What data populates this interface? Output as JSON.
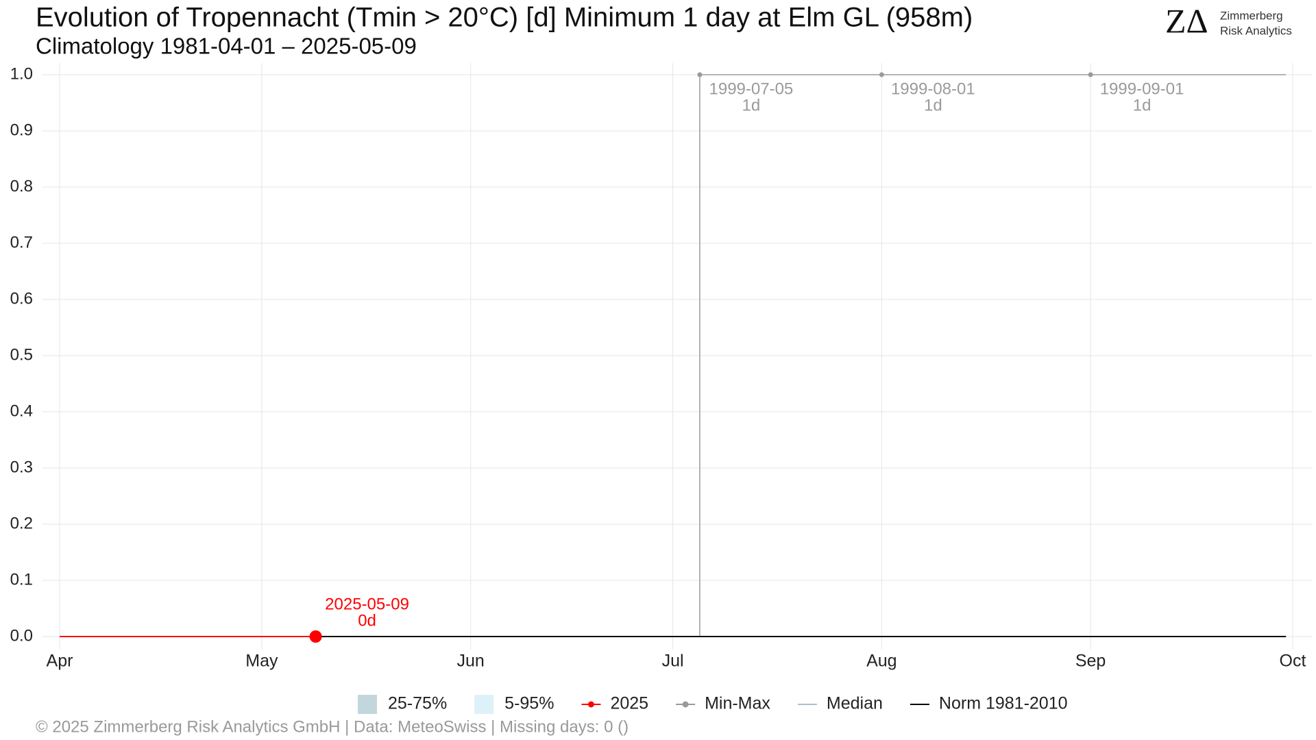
{
  "chart_data": {
    "type": "line",
    "title": "Evolution of Tropennacht (Tmin > 20°C) [d] Minimum 1 day at Elm  GL (958m)",
    "subtitle": "Climatology 1981-04-01 – 2025-05-09",
    "caption": "©  2025 Zimmerberg Risk Analytics GmbH | Data: MeteoSwiss | Missing days: 0 ()",
    "logo": {
      "mark": "ZΔ",
      "line1": "Zimmerberg",
      "line2": "Risk Analytics"
    },
    "xlim": [
      "2025-04-01",
      "2025-10-01"
    ],
    "xticks": [
      {
        "value": "2025-04-01",
        "label": "Apr"
      },
      {
        "value": "2025-05-01",
        "label": "May"
      },
      {
        "value": "2025-06-01",
        "label": "Jun"
      },
      {
        "value": "2025-07-01",
        "label": "Jul"
      },
      {
        "value": "2025-08-01",
        "label": "Aug"
      },
      {
        "value": "2025-09-01",
        "label": "Sep"
      },
      {
        "value": "2025-10-01",
        "label": "Oct"
      }
    ],
    "ylim": [
      0,
      1
    ],
    "yticks": [
      {
        "value": 0,
        "label": "0.0"
      },
      0.1,
      0.2,
      0.3,
      0.4,
      0.5,
      0.6,
      0.7,
      0.8,
      0.9,
      {
        "value": 1,
        "label": "1.0"
      }
    ],
    "grid": true,
    "bands": [
      {
        "name": "25-75%",
        "color": "#c3d6dc"
      },
      {
        "name": "5-95%",
        "color": "#dff1f8"
      }
    ],
    "series": [
      {
        "name": "2025",
        "color": "#ff0000",
        "marker": true,
        "x": [
          "2025-04-01",
          "2025-05-09"
        ],
        "values": [
          0,
          0
        ]
      },
      {
        "name": "Min-Max",
        "color": "#9a9a9a",
        "marker": true,
        "x": [
          "2025-07-05",
          "2025-07-05",
          "2025-09-30"
        ],
        "values": [
          0,
          1,
          1
        ]
      },
      {
        "name": "Median",
        "color": "#aebfcc",
        "marker": false,
        "x": [
          "2025-04-01",
          "2025-09-30"
        ],
        "values": [
          0,
          0
        ]
      },
      {
        "name": "Norm 1981-2010",
        "color": "#000000",
        "marker": false,
        "x": [
          "2025-05-09",
          "2025-09-30"
        ],
        "values": [
          0,
          0
        ]
      }
    ],
    "annotations": [
      {
        "x": "2025-07-05",
        "y": 1,
        "text": "1999-07-05",
        "value_text": "1d",
        "color": "#9a9a9a"
      },
      {
        "x": "2025-08-01",
        "y": 1,
        "text": "1999-08-01",
        "value_text": "1d",
        "color": "#9a9a9a"
      },
      {
        "x": "2025-09-01",
        "y": 1,
        "text": "1999-09-01",
        "value_text": "1d",
        "color": "#9a9a9a"
      },
      {
        "x": "2025-05-09",
        "y": 0,
        "text": "2025-05-09",
        "value_text": "0d",
        "color": "#ff0000"
      }
    ]
  }
}
